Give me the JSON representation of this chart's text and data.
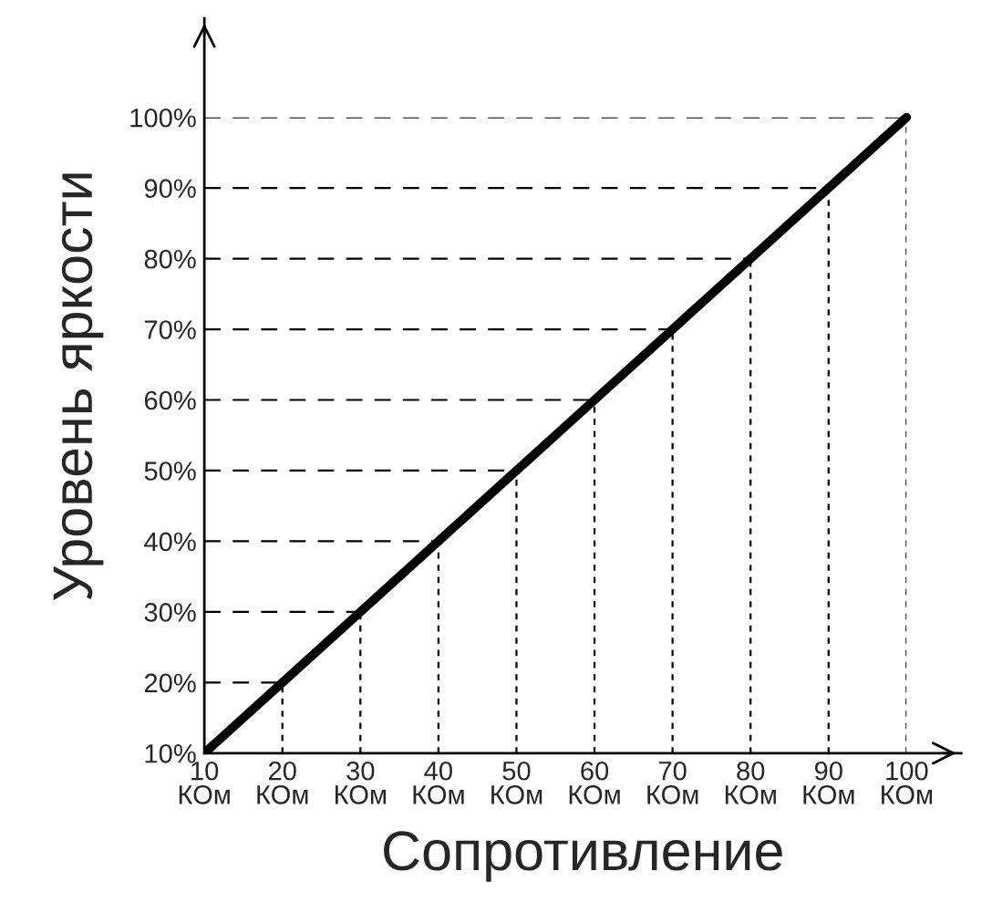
{
  "chart_data": {
    "type": "line",
    "xlabel": "Сопротивление",
    "ylabel": "Уровень яркости",
    "x": [
      10,
      20,
      30,
      40,
      50,
      60,
      70,
      80,
      90,
      100
    ],
    "series": [
      {
        "color": "#000000",
        "values": [
          10,
          20,
          30,
          40,
          50,
          60,
          70,
          80,
          90,
          100
        ]
      }
    ],
    "grid": true,
    "xlim": [
      10,
      107
    ],
    "ylim": [
      10,
      114
    ],
    "xticks": [
      {
        "value": 10,
        "label": "10\nКОм"
      },
      {
        "value": 20,
        "label": "20\nКОм"
      },
      {
        "value": 30,
        "label": "30\nКОм"
      },
      {
        "value": 40,
        "label": "40\nКОм"
      },
      {
        "value": 50,
        "label": "50\nКОм"
      },
      {
        "value": 60,
        "label": "60\nКОм"
      },
      {
        "value": 70,
        "label": "70\nКОм"
      },
      {
        "value": 80,
        "label": "80\nКОм"
      },
      {
        "value": 90,
        "label": "90\nКОм"
      },
      {
        "value": 100,
        "label": "100\nКОм"
      }
    ],
    "yticks": [
      {
        "value": 10,
        "label": "10%"
      },
      {
        "value": 20,
        "label": "20%"
      },
      {
        "value": 30,
        "label": "30%"
      },
      {
        "value": 40,
        "label": "40%"
      },
      {
        "value": 50,
        "label": "50%"
      },
      {
        "value": 60,
        "label": "60%"
      },
      {
        "value": 70,
        "label": "70%"
      },
      {
        "value": 80,
        "label": "80%"
      },
      {
        "value": 90,
        "label": "90%"
      },
      {
        "value": 100,
        "label": "100%"
      }
    ],
    "line_style": "solid"
  }
}
